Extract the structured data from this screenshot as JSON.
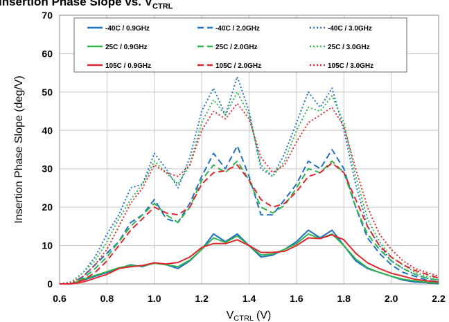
{
  "chart_data": {
    "type": "line",
    "title_main": "Insertion Phase Slope vs. V",
    "title_sub": "CTRL",
    "xlabel_main": "V",
    "xlabel_sub": "CTRL",
    "xlabel_unit": "(V)",
    "ylabel": "Insertion Phase Slope  (deg/V)",
    "xlim": [
      0.6,
      2.2
    ],
    "ylim": [
      0,
      70
    ],
    "xticks": [
      "0.6",
      "0.8",
      "1.0",
      "1.2",
      "1.4",
      "1.6",
      "1.8",
      "2.0",
      "2.2"
    ],
    "yticks": [
      "0",
      "10",
      "20",
      "30",
      "40",
      "50",
      "60",
      "70"
    ],
    "grid": true,
    "legend_position": "top",
    "series": [
      {
        "name": "-40C /  0.9GHz",
        "color": "#1f6fc4",
        "dash": "solid",
        "x": [
          0.6,
          0.65,
          0.7,
          0.75,
          0.8,
          0.85,
          0.9,
          0.95,
          1.0,
          1.05,
          1.1,
          1.15,
          1.2,
          1.25,
          1.3,
          1.35,
          1.4,
          1.45,
          1.5,
          1.55,
          1.6,
          1.65,
          1.7,
          1.75,
          1.8,
          1.85,
          1.9,
          1.95,
          2.0,
          2.05,
          2.1,
          2.15,
          2.2
        ],
        "y": [
          0,
          0,
          1,
          2,
          3,
          4,
          5,
          4.5,
          5.5,
          5,
          4,
          6,
          9,
          13,
          11,
          13,
          10,
          7,
          7.5,
          9,
          11,
          14,
          12,
          14,
          10,
          6,
          4,
          3,
          2,
          1,
          0.5,
          0.3,
          0
        ]
      },
      {
        "name": "-40C /  2.0GHz",
        "color": "#1f6fc4",
        "dash": "dash",
        "x": [
          0.6,
          0.65,
          0.7,
          0.75,
          0.8,
          0.85,
          0.9,
          0.95,
          1.0,
          1.05,
          1.1,
          1.15,
          1.2,
          1.25,
          1.3,
          1.35,
          1.4,
          1.45,
          1.5,
          1.55,
          1.6,
          1.65,
          1.7,
          1.75,
          1.8,
          1.85,
          1.9,
          1.95,
          2.0,
          2.05,
          2.1,
          2.15,
          2.2
        ],
        "y": [
          0,
          0,
          2,
          5,
          8,
          11,
          16,
          18,
          22,
          17,
          16,
          21,
          28,
          34,
          30,
          36,
          28,
          18,
          18,
          22,
          26,
          32,
          30,
          35,
          30,
          20,
          12,
          8,
          5,
          3,
          2,
          1,
          0.5
        ]
      },
      {
        "name": "-40C /  3.0GHz",
        "color": "#1f6fc4",
        "dash": "dot",
        "x": [
          0.6,
          0.65,
          0.7,
          0.75,
          0.8,
          0.85,
          0.9,
          0.95,
          1.0,
          1.05,
          1.1,
          1.15,
          1.2,
          1.25,
          1.3,
          1.35,
          1.4,
          1.45,
          1.5,
          1.55,
          1.6,
          1.65,
          1.7,
          1.75,
          1.8,
          1.85,
          1.9,
          1.95,
          2.0,
          2.05,
          2.1,
          2.15,
          2.2
        ],
        "y": [
          0,
          0.5,
          3,
          7,
          13,
          18,
          25,
          26,
          34,
          30,
          25,
          33,
          45,
          51,
          44,
          54,
          45,
          30,
          28,
          34,
          42,
          50,
          46,
          51,
          40,
          26,
          15,
          10,
          6,
          4,
          2.5,
          1.5,
          1
        ]
      },
      {
        "name": "25C /  0.9GHz",
        "color": "#2eb34a",
        "dash": "solid",
        "x": [
          0.6,
          0.65,
          0.7,
          0.75,
          0.8,
          0.85,
          0.9,
          0.95,
          1.0,
          1.05,
          1.1,
          1.15,
          1.2,
          1.25,
          1.3,
          1.35,
          1.4,
          1.45,
          1.5,
          1.55,
          1.6,
          1.65,
          1.7,
          1.75,
          1.8,
          1.85,
          1.9,
          1.95,
          2.0,
          2.05,
          2.1,
          2.15,
          2.2
        ],
        "y": [
          0,
          0,
          1.2,
          2.2,
          3.2,
          4.2,
          4.8,
          4.6,
          5.4,
          5,
          4.5,
          6.2,
          9,
          12,
          10.8,
          12.5,
          10,
          7.5,
          7.8,
          9,
          10.5,
          13,
          11.8,
          13,
          10,
          6.5,
          4.2,
          3,
          2,
          1.2,
          0.8,
          0.4,
          0.2
        ]
      },
      {
        "name": "25C /  2.0GHz",
        "color": "#2eb34a",
        "dash": "dash",
        "x": [
          0.6,
          0.65,
          0.7,
          0.75,
          0.8,
          0.85,
          0.9,
          0.95,
          1.0,
          1.05,
          1.1,
          1.15,
          1.2,
          1.25,
          1.3,
          1.35,
          1.4,
          1.45,
          1.5,
          1.55,
          1.6,
          1.65,
          1.7,
          1.75,
          1.8,
          1.85,
          1.9,
          1.95,
          2.0,
          2.05,
          2.1,
          2.15,
          2.2
        ],
        "y": [
          0,
          0,
          1.5,
          4,
          7,
          11,
          15,
          18,
          21,
          18,
          16,
          20,
          27,
          31,
          29,
          32,
          27,
          20,
          18.5,
          20.5,
          25,
          30,
          29,
          32,
          29,
          20,
          13,
          9,
          6,
          4,
          2.5,
          1.5,
          1
        ]
      },
      {
        "name": "25C /  3.0GHz",
        "color": "#2eb34a",
        "dash": "dot",
        "x": [
          0.6,
          0.65,
          0.7,
          0.75,
          0.8,
          0.85,
          0.9,
          0.95,
          1.0,
          1.05,
          1.1,
          1.15,
          1.2,
          1.25,
          1.3,
          1.35,
          1.4,
          1.45,
          1.5,
          1.55,
          1.6,
          1.65,
          1.7,
          1.75,
          1.8,
          1.85,
          1.9,
          1.95,
          2.0,
          2.05,
          2.1,
          2.15,
          2.2
        ],
        "y": [
          0,
          0.5,
          3,
          6,
          11,
          17,
          22,
          26,
          32,
          29,
          26,
          31,
          42,
          48,
          44,
          50,
          44,
          31,
          28,
          32,
          40,
          46,
          45,
          49,
          42,
          28,
          17,
          11,
          7,
          5,
          3,
          2,
          1.5
        ]
      },
      {
        "name": "105C /  0.9GHz",
        "color": "#e0262b",
        "dash": "solid",
        "x": [
          0.6,
          0.65,
          0.7,
          0.75,
          0.8,
          0.85,
          0.9,
          0.95,
          1.0,
          1.05,
          1.1,
          1.15,
          1.2,
          1.25,
          1.3,
          1.35,
          1.4,
          1.45,
          1.5,
          1.55,
          1.6,
          1.65,
          1.7,
          1.75,
          1.8,
          1.85,
          1.9,
          1.95,
          2.0,
          2.05,
          2.1,
          2.15,
          2.2
        ],
        "y": [
          0,
          0,
          0.5,
          1.5,
          2.5,
          4,
          4.5,
          4.8,
          5.5,
          5.2,
          5.6,
          7,
          9.5,
          10.5,
          10.5,
          11.5,
          10,
          8.2,
          8.2,
          8.5,
          10,
          12,
          11.8,
          12.8,
          11.5,
          8,
          5.5,
          4,
          2.8,
          2,
          1.2,
          0.8,
          0.5
        ]
      },
      {
        "name": "105C /  2.0GHz",
        "color": "#e0262b",
        "dash": "dash",
        "x": [
          0.6,
          0.65,
          0.7,
          0.75,
          0.8,
          0.85,
          0.9,
          0.95,
          1.0,
          1.05,
          1.1,
          1.15,
          1.2,
          1.25,
          1.3,
          1.35,
          1.4,
          1.45,
          1.5,
          1.55,
          1.6,
          1.65,
          1.7,
          1.75,
          1.8,
          1.85,
          1.9,
          1.95,
          2.0,
          2.05,
          2.1,
          2.15,
          2.2
        ],
        "y": [
          0,
          0,
          1,
          3,
          6,
          10,
          14,
          17,
          20,
          18.5,
          18,
          20,
          26,
          29,
          29.5,
          31,
          27,
          22,
          20,
          21,
          24,
          28,
          29,
          31.5,
          29,
          22,
          15,
          10,
          7,
          5,
          3.5,
          2.5,
          1.5
        ]
      },
      {
        "name": "105C /  3.0GHz",
        "color": "#e0262b",
        "dash": "dot",
        "x": [
          0.6,
          0.65,
          0.7,
          0.75,
          0.8,
          0.85,
          0.9,
          0.95,
          1.0,
          1.05,
          1.1,
          1.15,
          1.2,
          1.25,
          1.3,
          1.35,
          1.4,
          1.45,
          1.5,
          1.55,
          1.6,
          1.65,
          1.7,
          1.75,
          1.8,
          1.85,
          1.9,
          1.95,
          2.0,
          2.05,
          2.1,
          2.15,
          2.2
        ],
        "y": [
          0,
          0.3,
          2,
          5,
          9,
          15,
          21,
          25,
          31,
          29,
          28,
          31,
          40,
          45,
          43,
          47,
          43,
          33,
          29,
          31,
          37,
          42,
          44,
          46,
          41,
          30,
          20,
          13,
          9,
          6,
          4,
          3,
          2
        ]
      }
    ]
  }
}
